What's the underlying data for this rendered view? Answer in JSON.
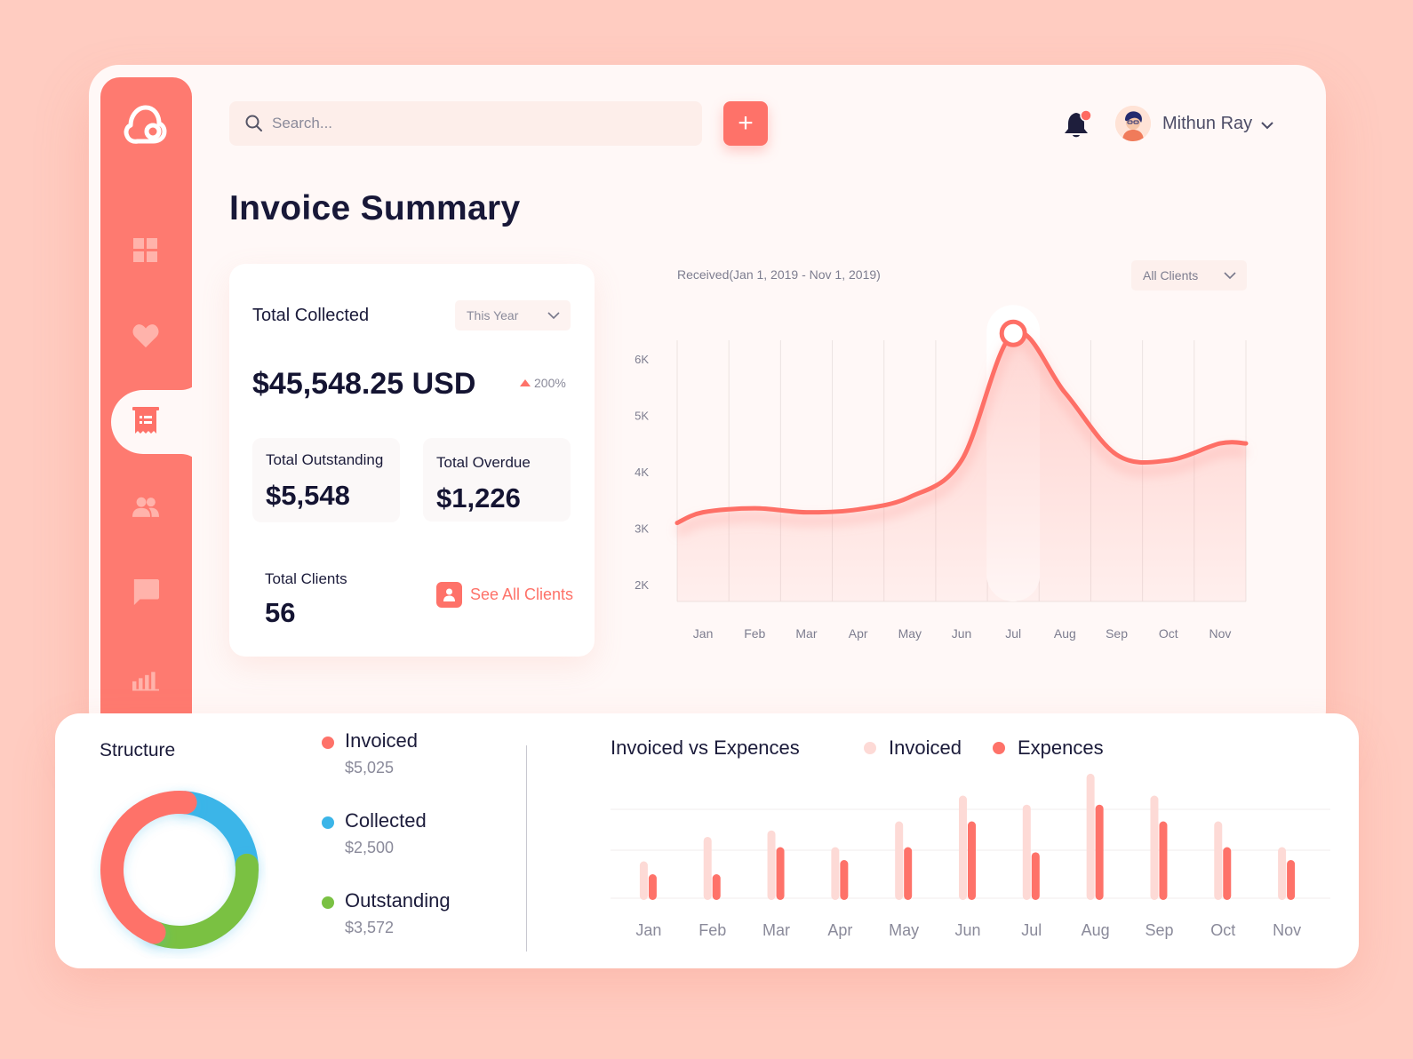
{
  "search": {
    "placeholder": "Search..."
  },
  "header": {
    "add_label": "+",
    "user_name": "Mithun Ray"
  },
  "page": {
    "title": "Invoice Summary"
  },
  "collected_card": {
    "title": "Total Collected",
    "period": "This Year",
    "total": "$45,548.25 USD",
    "growth": "200%",
    "outstanding_label": "Total Outstanding",
    "outstanding_value": "$5,548",
    "overdue_label": "Total Overdue",
    "overdue_value": "$1,226",
    "clients_label": "Total Clients",
    "clients_value": "56",
    "see_all": "See All Clients"
  },
  "received_chart": {
    "caption": "Received(Jan 1, 2019 - Nov 1, 2019)",
    "filter": "All Clients"
  },
  "structure": {
    "title": "Structure",
    "items": [
      {
        "name": "Invoiced",
        "amount": "$5,025",
        "color": "#fe7269"
      },
      {
        "name": "Collected",
        "amount": "$2,500",
        "color": "#3bb5e8"
      },
      {
        "name": "Outstanding",
        "amount": "$3,572",
        "color": "#7ac143"
      }
    ]
  },
  "comparison": {
    "title": "Invoiced vs Expences",
    "legend_invoiced": "Invoiced",
    "legend_expences": "Expences"
  },
  "colors": {
    "accent": "#fe7269",
    "accent_light": "#fddad6",
    "sidebar": "#fe7a70"
  },
  "chart_data": [
    {
      "type": "area",
      "title": "Received(Jan 1, 2019 - Nov 1, 2019)",
      "categories": [
        "Jan",
        "Feb",
        "Mar",
        "Apr",
        "May",
        "Jun",
        "Jul",
        "Aug",
        "Sep",
        "Oct",
        "Nov"
      ],
      "y_ticks": [
        "2K",
        "3K",
        "4K",
        "5K",
        "6K"
      ],
      "ylim": [
        1700,
        6800
      ],
      "series": [
        {
          "values": [
            3280,
            3350,
            3280,
            3330,
            3550,
            4200,
            6450,
            5400,
            4300,
            4200,
            4500
          ]
        }
      ],
      "highlight": "Jul",
      "grid": "vertical"
    },
    {
      "type": "bar",
      "title": "Invoiced vs Expences",
      "categories": [
        "Jan",
        "Feb",
        "Mar",
        "Apr",
        "May",
        "Jun",
        "Jul",
        "Aug",
        "Sep",
        "Oct",
        "Nov"
      ],
      "ylim": [
        0,
        100
      ],
      "series": [
        {
          "name": "Invoiced",
          "values": [
            30,
            49,
            54,
            41,
            61,
            81,
            74,
            98,
            81,
            61,
            41
          ],
          "color": "#fddad6"
        },
        {
          "name": "Expences",
          "values": [
            20,
            20,
            41,
            31,
            41,
            61,
            37,
            74,
            61,
            41,
            31
          ],
          "color": "#fe7269"
        }
      ],
      "legend": "top"
    },
    {
      "type": "pie",
      "title": "Structure",
      "categories": [
        "Invoiced",
        "Collected",
        "Outstanding"
      ],
      "values": [
        5025,
        2500,
        3572
      ],
      "donut": true
    }
  ]
}
